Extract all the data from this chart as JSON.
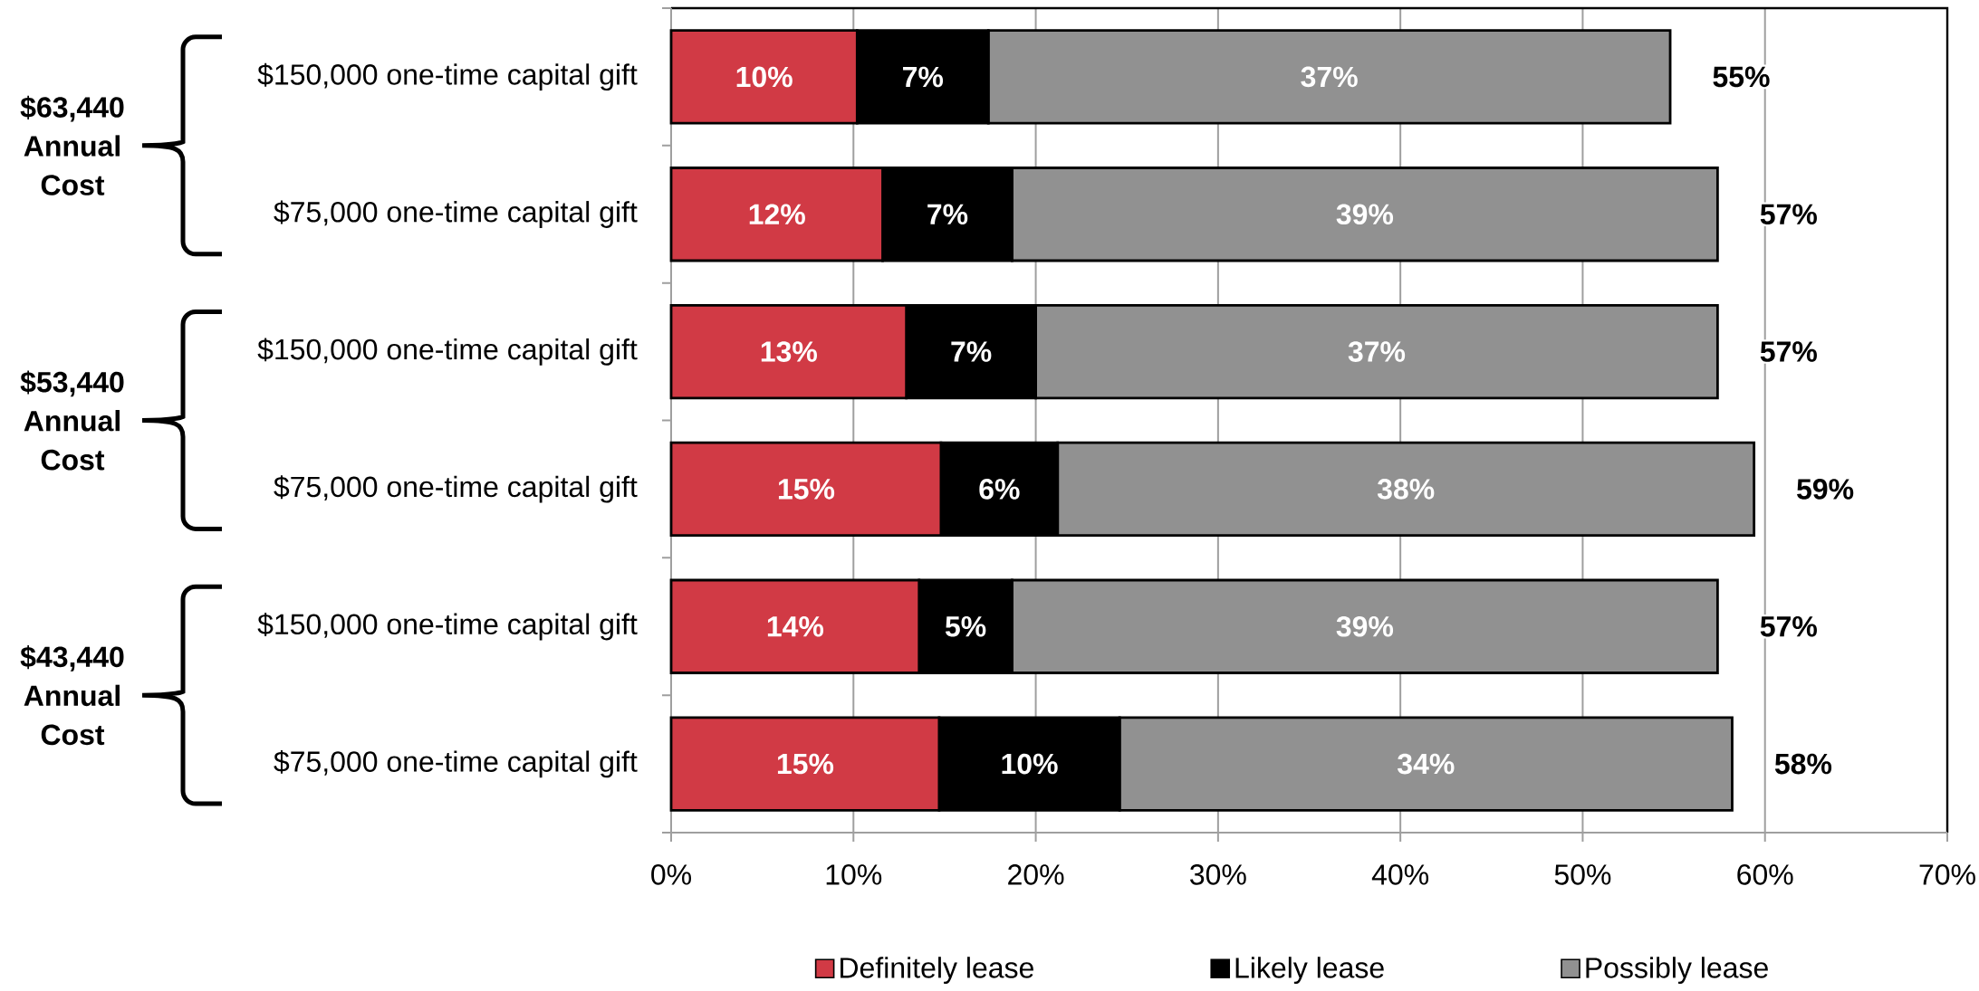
{
  "chart_data": {
    "type": "bar",
    "orientation": "horizontal",
    "stacked": true,
    "categories": [
      "$150,000 one-time capital gift",
      "$75,000 one-time capital gift",
      "$150,000 one-time capital gift",
      "$75,000 one-time capital gift",
      "$150,000 one-time capital gift",
      "$75,000 one-time capital gift"
    ],
    "series": [
      {
        "name": "Definitely lease",
        "color": "#d13a45",
        "values": [
          10.2,
          11.6,
          12.9,
          14.8,
          13.6,
          14.7
        ],
        "value_labels": [
          "10%",
          "12%",
          "13%",
          "15%",
          "14%",
          "15%"
        ]
      },
      {
        "name": "Likely lease",
        "color": "#000000",
        "values": [
          7.2,
          7.1,
          7.1,
          6.4,
          5.1,
          9.9
        ],
        "value_labels": [
          "7%",
          "7%",
          "7%",
          "6%",
          "5%",
          "10%"
        ]
      },
      {
        "name": "Possibly lease",
        "color": "#919191",
        "values": [
          37.4,
          38.7,
          37.4,
          38.2,
          38.7,
          33.6
        ],
        "value_labels": [
          "37%",
          "39%",
          "37%",
          "38%",
          "39%",
          "34%"
        ]
      }
    ],
    "totals": [
      "55%",
      "57%",
      "57%",
      "59%",
      "57%",
      "58%"
    ],
    "xlim": [
      0,
      70
    ],
    "xticks": [
      {
        "value": 0,
        "label": "0%"
      },
      {
        "value": 10,
        "label": "10%"
      },
      {
        "value": 20,
        "label": "20%"
      },
      {
        "value": 30,
        "label": "30%"
      },
      {
        "value": 40,
        "label": "40%"
      },
      {
        "value": 50,
        "label": "50%"
      },
      {
        "value": 60,
        "label": "60%"
      },
      {
        "value": 70,
        "label": "70%"
      }
    ],
    "grid": "x",
    "legend": "bottom",
    "annotations": [
      "$63,440 Annual Cost",
      "$53,440 Annual Cost",
      "$43,440 Annual Cost"
    ]
  }
}
